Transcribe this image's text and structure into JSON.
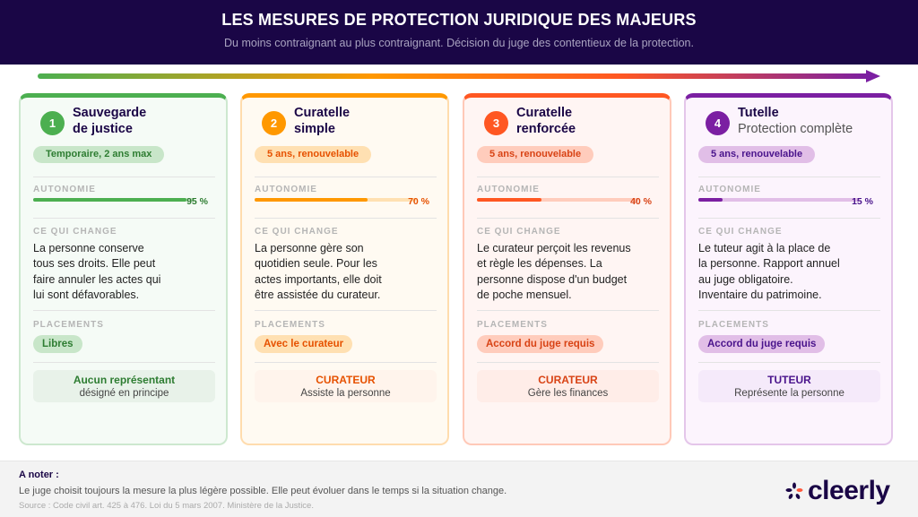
{
  "header": {
    "title": "LES MESURES DE PROTECTION JURIDIQUE DES MAJEURS",
    "subtitle": "Du moins contraignant au plus contraignant. Décision du juge des contentieux de la protection."
  },
  "labels": {
    "autonomie": "AUTONOMIE",
    "change": "CE QUI CHANGE",
    "placements": "PLACEMENTS"
  },
  "cards": [
    {
      "number": "1",
      "title_l1": "Sauvegarde",
      "title_l2": "de justice",
      "subtitle": "",
      "duration": "Temporaire, 2 ans max",
      "autonomy": 95,
      "autonomy_label": "95 %",
      "change": "La personne conserve tous ses droits. Elle peut faire annuler les actes qui lui sont défavorables.",
      "placements": "Libres",
      "rep_title": "Aucun représentant",
      "rep_desc": "désigné en principe",
      "color": "#4caf50"
    },
    {
      "number": "2",
      "title_l1": "Curatelle",
      "title_l2": "simple",
      "subtitle": "",
      "duration": "5 ans, renouvelable",
      "autonomy": 70,
      "autonomy_label": "70 %",
      "change": "La personne gère son quotidien seule. Pour les actes importants, elle doit être assistée du curateur.",
      "placements": "Avec le curateur",
      "rep_title": "CURATEUR",
      "rep_desc": "Assiste la personne",
      "color": "#ff9800"
    },
    {
      "number": "3",
      "title_l1": "Curatelle",
      "title_l2": "renforcée",
      "subtitle": "",
      "duration": "5 ans, renouvelable",
      "autonomy": 40,
      "autonomy_label": "40 %",
      "change": "Le curateur perçoit les revenus et règle les dépenses. La personne dispose d'un budget de poche mensuel.",
      "placements": "Accord du juge requis",
      "rep_title": "CURATEUR",
      "rep_desc": "Gère les finances",
      "color": "#ff5722"
    },
    {
      "number": "4",
      "title_l1": "Tutelle",
      "title_l2": "",
      "subtitle": "Protection complète",
      "duration": "5 ans, renouvelable",
      "autonomy": 15,
      "autonomy_label": "15 %",
      "change": "Le tuteur agit à la place de la personne. Rapport annuel au juge obligatoire. Inventaire du patrimoine.",
      "placements": "Accord du juge requis",
      "rep_title": "TUTEUR",
      "rep_desc": "Représente la personne",
      "color": "#7b1fa2"
    }
  ],
  "footer": {
    "note_title": "A noter :",
    "note": "Le juge choisit toujours la mesure la plus légère possible. Elle peut évoluer dans le temps si la situation change.",
    "source": "Source : Code civil art. 425 à 476. Loi du 5 mars 2007. Ministère de la Justice.",
    "logo": "cleerly"
  }
}
